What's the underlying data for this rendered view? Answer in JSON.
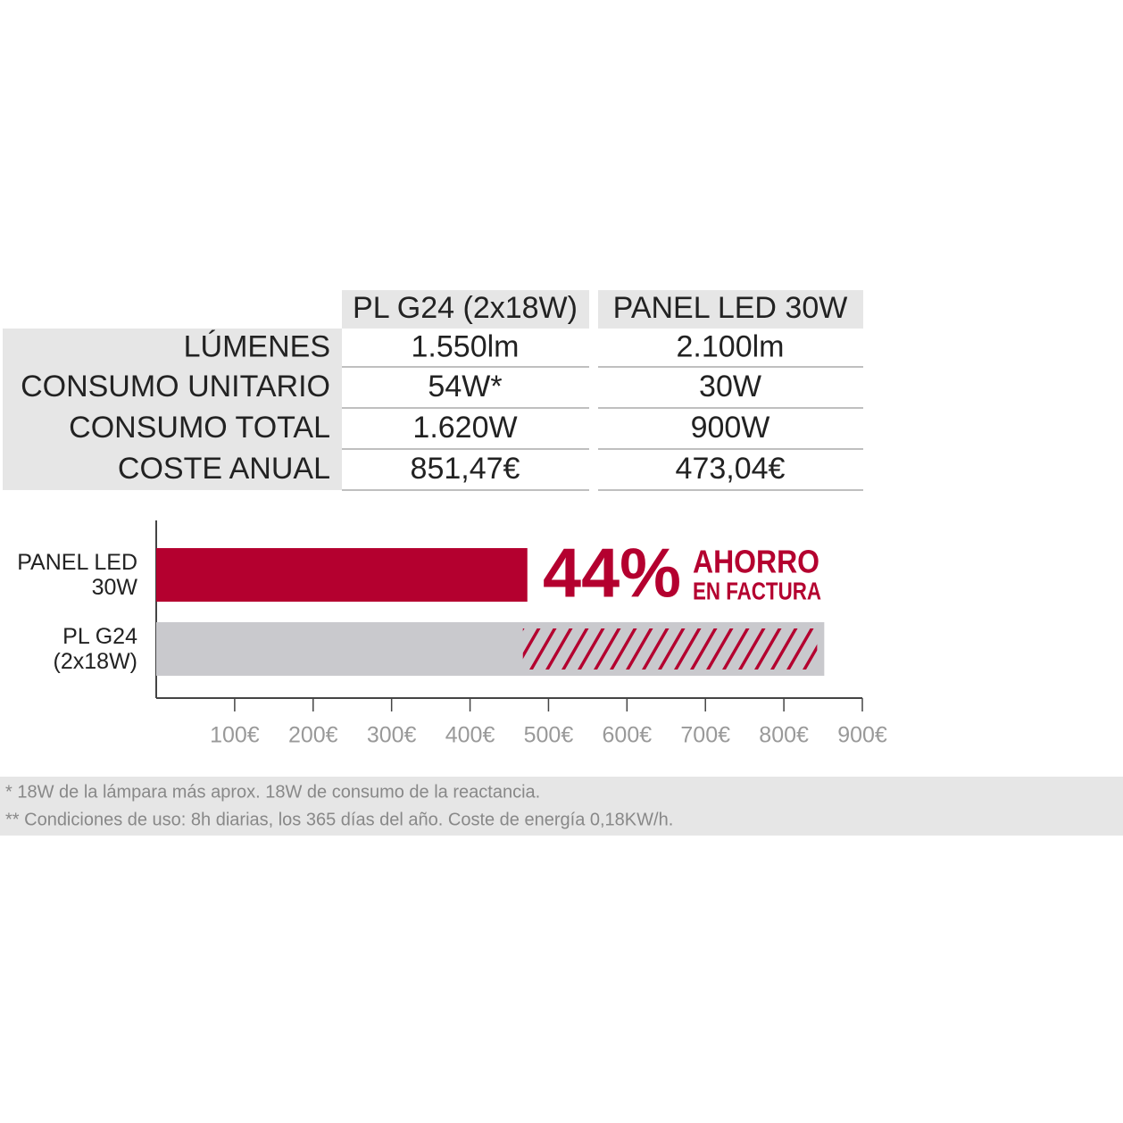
{
  "table": {
    "headers": [
      "PL G24 (2x18W)",
      "PANEL LED 30W"
    ],
    "rows": [
      [
        "LÚMENES",
        "1.550lm",
        "2.100lm"
      ],
      [
        "CONSUMO UNITARIO",
        "54W*",
        "30W"
      ],
      [
        "CONSUMO TOTAL",
        "1.620W",
        "900W"
      ],
      [
        "COSTE ANUAL",
        "851,47€",
        "473,04€"
      ]
    ]
  },
  "chart_data": {
    "type": "hbar",
    "categories": [
      "PANEL LED\n30W",
      "PL G24\n(2x18W)"
    ],
    "values": [
      473.04,
      851.47
    ],
    "colors": [
      "#b4002f",
      "#c9c9cd"
    ],
    "xlim": [
      0,
      900
    ],
    "xticks": [
      {
        "value": 100,
        "label": "100€"
      },
      {
        "value": 200,
        "label": "200€"
      },
      {
        "value": 300,
        "label": "300€"
      },
      {
        "value": 400,
        "label": "400€"
      },
      {
        "value": 500,
        "label": "500€"
      },
      {
        "value": 600,
        "label": "600€"
      },
      {
        "value": 700,
        "label": "700€"
      },
      {
        "value": 800,
        "label": "800€"
      },
      {
        "value": 900,
        "label": "900€"
      }
    ],
    "annotation": {
      "value": "44%",
      "lines": [
        "AHORRO",
        "EN FACTURA"
      ]
    }
  },
  "footnotes": [
    "* 18W de la lámpara más aprox. 18W de consumo de la reactancia.",
    "** Condiciones de uso: 8h diarias, los 365 días del año. Coste de energía 0,18KW/h."
  ]
}
